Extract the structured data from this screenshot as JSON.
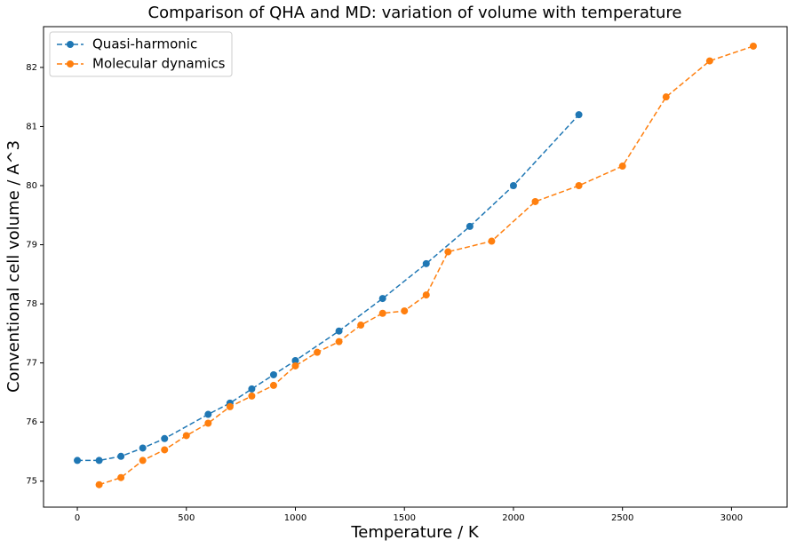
{
  "chart_data": {
    "type": "line",
    "title": "Comparison of QHA and MD: variation of volume with temperature",
    "x_label": "Temperature / K",
    "y_label": "Conventional cell volume / A^3",
    "xlim": [
      -155,
      3255
    ],
    "ylim": [
      74.56,
      82.69
    ],
    "xticks": [
      0,
      500,
      1000,
      1500,
      2000,
      2500,
      3000
    ],
    "yticks": [
      75,
      76,
      77,
      78,
      79,
      80,
      81,
      82
    ],
    "grid": false,
    "legend": "upper left",
    "series": [
      {
        "name": "Quasi-harmonic",
        "color": "#1f77b4",
        "x": [
          0,
          100,
          200,
          300,
          400,
          600,
          700,
          800,
          900,
          1000,
          1200,
          1400,
          1600,
          1800,
          2000,
          2300
        ],
        "values": [
          75.35,
          75.35,
          75.42,
          75.56,
          75.72,
          76.13,
          76.32,
          76.56,
          76.8,
          77.04,
          77.54,
          78.09,
          78.68,
          79.31,
          80.0,
          81.2
        ]
      },
      {
        "name": "Molecular dynamics",
        "color": "#ff7f0e",
        "x": [
          100,
          200,
          300,
          400,
          500,
          600,
          700,
          800,
          900,
          1000,
          1100,
          1200,
          1300,
          1400,
          1500,
          1600,
          1700,
          1900,
          2100,
          2300,
          2500,
          2700,
          2900,
          3100
        ],
        "values": [
          74.94,
          75.06,
          75.35,
          75.53,
          75.77,
          75.98,
          76.26,
          76.44,
          76.62,
          76.95,
          77.18,
          77.36,
          77.64,
          77.84,
          77.88,
          78.15,
          78.88,
          79.06,
          79.73,
          80.0,
          80.33,
          81.5,
          82.11,
          82.36
        ]
      }
    ]
  }
}
